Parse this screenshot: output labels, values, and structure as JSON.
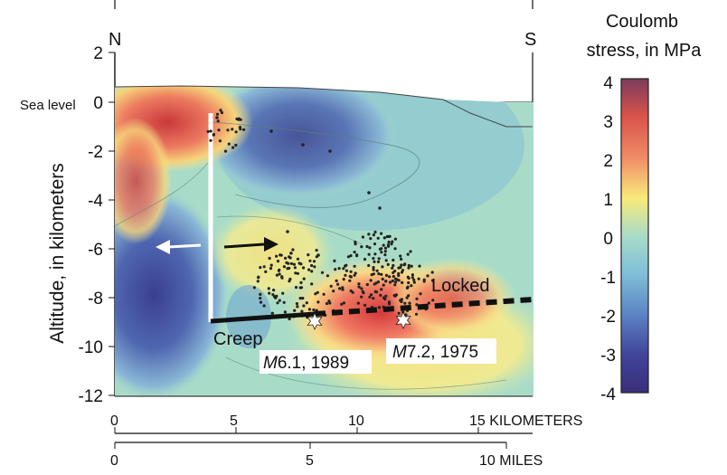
{
  "compass": {
    "north": "N",
    "south": "S"
  },
  "sea_level_label": "Sea level",
  "y_axis": {
    "label": "Altitude, in kilometers",
    "ticks": [
      "2",
      "0",
      "-2",
      "-4",
      "-6",
      "-8",
      "-10",
      "-12"
    ]
  },
  "x_axis_km": {
    "ticks": [
      "0",
      "5",
      "10",
      "15 KILOMETERS"
    ]
  },
  "x_axis_miles": {
    "ticks": [
      "0",
      "5",
      "10 MILES"
    ]
  },
  "labels": {
    "creep": "Creep",
    "locked": "Locked"
  },
  "earthquakes": [
    {
      "magnitude_prefix": "M",
      "label_rest": "6.1, 1989"
    },
    {
      "magnitude_prefix": "M",
      "label_rest": "7.2, 1975"
    }
  ],
  "colorbar": {
    "title_line1": "Coulomb",
    "title_line2": "stress, in MPa",
    "ticks": [
      "4",
      "3",
      "2",
      "1",
      "0",
      "-1",
      "-2",
      "-3",
      "-4"
    ]
  },
  "colors": {
    "high": "#d33a36",
    "mid_high": "#f7ec7c",
    "neutral": "#a9dcc8",
    "mid_low": "#7eb2d6",
    "low": "#3a3f8f",
    "water": "#d6eef7"
  }
}
